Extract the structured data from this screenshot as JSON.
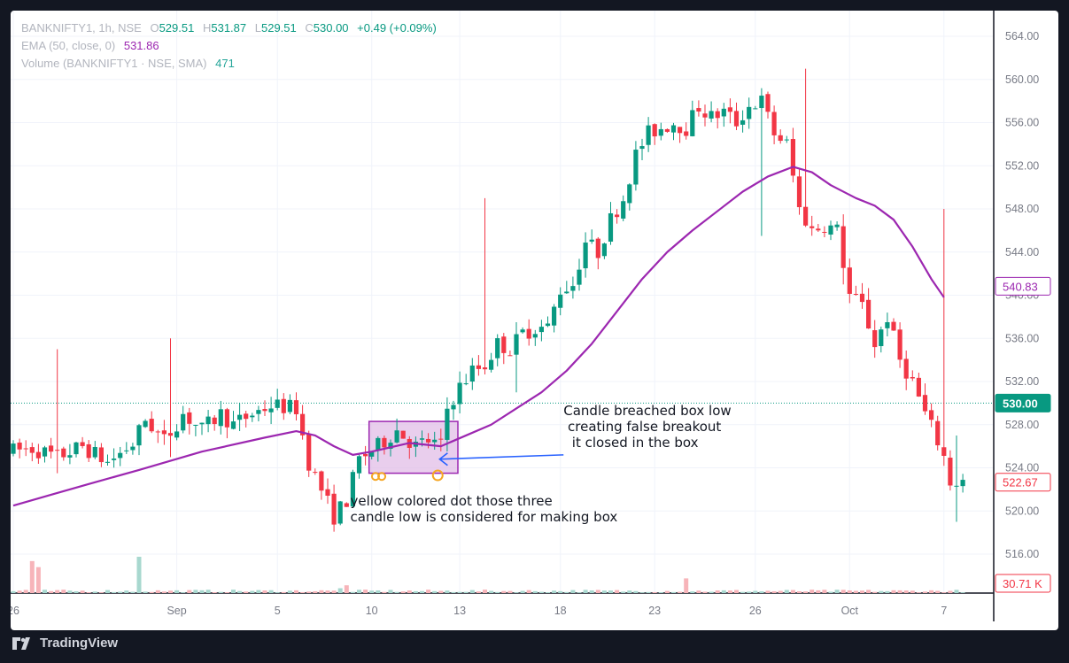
{
  "legend": {
    "symbol": "BANKNIFTY1, 1h, NSE",
    "o_label": "O",
    "o": "529.51",
    "h_label": "H",
    "h": "531.87",
    "l_label": "L",
    "l": "529.51",
    "c_label": "C",
    "c": "530.00",
    "change": "+0.49 (+0.09%)",
    "ema_label": "EMA (50, close, 0)",
    "ema": "531.86",
    "vol_label": "Volume (BANKNIFTY1 · NSE, SMA)",
    "vol": "471"
  },
  "brand": "TradingView",
  "colors": {
    "up": "#089981",
    "down": "#f23645",
    "ema": "#9c27b0",
    "box": "#9c27b0",
    "box_fill": "#e1bee7",
    "arrow": "#2962ff",
    "dot": "#f5a623"
  },
  "chart_data": {
    "type": "candlestick",
    "ylim": [
      514.5,
      566.5
    ],
    "y_ticks": [
      516,
      520,
      524,
      528,
      532,
      536,
      540,
      544,
      548,
      552,
      556,
      560,
      564
    ],
    "y_tick_labels": [
      "516.00",
      "520.00",
      "524.00",
      "528.00",
      "532.00",
      "536.00",
      "540.00",
      "544.00",
      "548.00",
      "552.00",
      "556.00",
      "560.00",
      "564.00"
    ],
    "x_count": 152,
    "x_ticks": [
      {
        "i": 0,
        "label": "26"
      },
      {
        "i": 26,
        "label": "Sep"
      },
      {
        "i": 42,
        "label": "5"
      },
      {
        "i": 57,
        "label": "10"
      },
      {
        "i": 71,
        "label": "13"
      },
      {
        "i": 87,
        "label": "18"
      },
      {
        "i": 102,
        "label": "23"
      },
      {
        "i": 118,
        "label": "26"
      },
      {
        "i": 133,
        "label": "Oct"
      },
      {
        "i": 148,
        "label": "7"
      }
    ],
    "price_tags": [
      {
        "label": "540.83",
        "y": 540.83,
        "kind": "ema"
      },
      {
        "label": "530.00",
        "y": 530.0,
        "kind": "last"
      },
      {
        "label": "522.67",
        "y": 522.67,
        "kind": "low"
      },
      {
        "label": "30.71 K",
        "kind": "volume"
      }
    ],
    "last_price": 530.0,
    "ema50": [
      [
        0,
        520.5
      ],
      [
        6,
        521.5
      ],
      [
        12,
        522.5
      ],
      [
        20,
        523.8
      ],
      [
        30,
        525.5
      ],
      [
        40,
        526.8
      ],
      [
        45,
        527.4
      ],
      [
        48,
        527.0
      ],
      [
        51,
        526.0
      ],
      [
        54,
        525.2
      ],
      [
        57,
        525.5
      ],
      [
        63,
        526.3
      ],
      [
        68,
        526.0
      ],
      [
        72,
        527.0
      ],
      [
        76,
        528.0
      ],
      [
        80,
        529.5
      ],
      [
        84,
        531.0
      ],
      [
        88,
        533.0
      ],
      [
        92,
        535.5
      ],
      [
        96,
        538.5
      ],
      [
        100,
        541.5
      ],
      [
        104,
        544.0
      ],
      [
        108,
        546.0
      ],
      [
        112,
        547.8
      ],
      [
        116,
        549.6
      ],
      [
        120,
        551.0
      ],
      [
        124,
        551.9
      ],
      [
        127,
        551.4
      ],
      [
        130,
        550.2
      ],
      [
        134,
        549.0
      ],
      [
        137,
        548.3
      ],
      [
        140,
        547.0
      ],
      [
        143,
        544.5
      ],
      [
        146,
        541.5
      ],
      [
        148,
        539.8
      ]
    ],
    "keypoints": [
      [
        0,
        525.5
      ],
      [
        4,
        525.8
      ],
      [
        8,
        525.0
      ],
      [
        12,
        526.0
      ],
      [
        16,
        524.5
      ],
      [
        20,
        526.2
      ],
      [
        22,
        528.5
      ],
      [
        25,
        526.5
      ],
      [
        28,
        529.0
      ],
      [
        31,
        527.5
      ],
      [
        34,
        529.0
      ],
      [
        36,
        528.0
      ],
      [
        39,
        529.0
      ],
      [
        42,
        529.8
      ],
      [
        46,
        529.5
      ],
      [
        48,
        524.5
      ],
      [
        50,
        522.0
      ],
      [
        52,
        519.5
      ],
      [
        54,
        521.0
      ],
      [
        56,
        524.8
      ],
      [
        59,
        526.0
      ],
      [
        62,
        527.5
      ],
      [
        65,
        526.0
      ],
      [
        67,
        526.5
      ],
      [
        69,
        526.0
      ],
      [
        70,
        529.5
      ],
      [
        72,
        531.5
      ],
      [
        74,
        533.0
      ],
      [
        76,
        533.5
      ],
      [
        78,
        535.5
      ],
      [
        80,
        535.0
      ],
      [
        82,
        536.5
      ],
      [
        84,
        537.0
      ],
      [
        86,
        537.0
      ],
      [
        88,
        540.5
      ],
      [
        90,
        541.0
      ],
      [
        92,
        545.0
      ],
      [
        94,
        544.0
      ],
      [
        96,
        547.0
      ],
      [
        98,
        549.0
      ],
      [
        100,
        553.0
      ],
      [
        102,
        555.0
      ],
      [
        104,
        555.5
      ],
      [
        106,
        556.0
      ],
      [
        108,
        555.5
      ],
      [
        110,
        557.5
      ],
      [
        112,
        556.5
      ],
      [
        114,
        557.0
      ],
      [
        116,
        556.0
      ],
      [
        118,
        557.5
      ],
      [
        120,
        558.0
      ],
      [
        122,
        555.0
      ],
      [
        124,
        554.0
      ],
      [
        126,
        548.0
      ],
      [
        128,
        546.0
      ],
      [
        130,
        546.5
      ],
      [
        132,
        546.0
      ],
      [
        134,
        540.0
      ],
      [
        136,
        539.0
      ],
      [
        138,
        535.5
      ],
      [
        140,
        538.0
      ],
      [
        142,
        534.0
      ],
      [
        144,
        532.0
      ],
      [
        146,
        529.0
      ],
      [
        148,
        526.5
      ],
      [
        149,
        525.0
      ],
      [
        150,
        522.67
      ]
    ],
    "spikes": [
      {
        "i": 7,
        "high": 535.0,
        "low": 523.5
      },
      {
        "i": 25,
        "high": 536.0,
        "low": 525.0
      },
      {
        "i": 75,
        "high": 549.0,
        "low": 536.0
      },
      {
        "i": 80,
        "high": 537.5,
        "low": 531.0
      },
      {
        "i": 119,
        "high": 554.0,
        "low": 545.5
      },
      {
        "i": 126,
        "high": 561.0,
        "low": 553.5
      },
      {
        "i": 132,
        "high": 547.5,
        "low": 541.0
      },
      {
        "i": 148,
        "high": 548.0,
        "low": 531.0
      },
      {
        "i": 150,
        "high": 527.0,
        "low": 519.0
      }
    ],
    "volume": {
      "max": 30710,
      "spikes": [
        {
          "i": 3,
          "v": 18500
        },
        {
          "i": 4,
          "v": 15000
        },
        {
          "i": 20,
          "v": 21000
        },
        {
          "i": 107,
          "v": 8500
        },
        {
          "i": 52,
          "v": 2800
        },
        {
          "i": 53,
          "v": 4500
        }
      ]
    },
    "box": {
      "i_start": 57,
      "i_end": 70,
      "top": 528.3,
      "bottom": 523.5
    },
    "yellow_dots": [
      {
        "i": 57.6,
        "y": 523.2
      },
      {
        "i": 58.6,
        "y": 523.2
      },
      {
        "i": 67.5,
        "y": 523.3
      }
    ],
    "arrow": {
      "from_i": 87.5,
      "from_y": 525.2,
      "to_i": 67.8,
      "to_y": 524.8
    },
    "annotations": [
      {
        "text": "Candle breached box low\n creating false breakout\n  it closed in the box",
        "i": 87.5,
        "y": 528.9
      },
      {
        "text": "yellow colored dot those three\ncandle low is considered for making box",
        "i": 53.6,
        "y": 520.5
      }
    ]
  }
}
